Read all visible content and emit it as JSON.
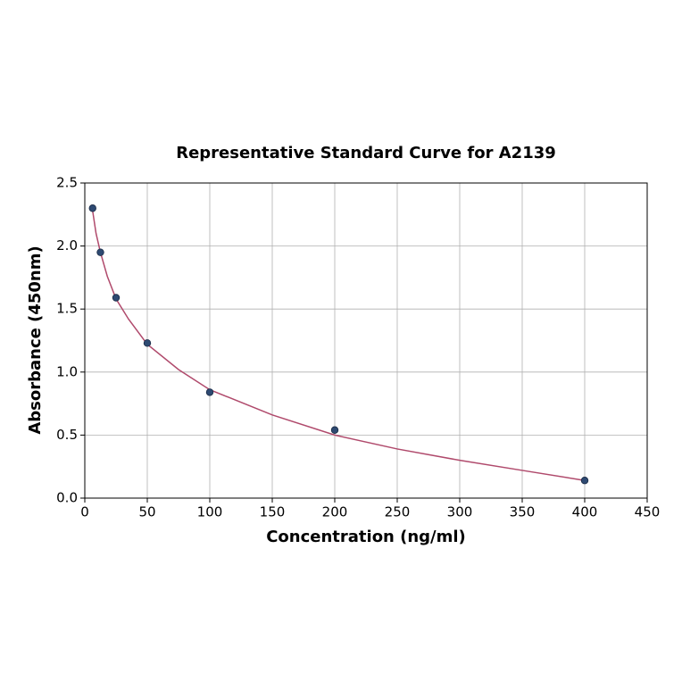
{
  "chart_data": {
    "type": "scatter",
    "title": "Representative Standard Curve for A2139",
    "x_label": "Concentration (ng/ml)",
    "y_label": "Absorbance (450nm)",
    "xlim": [
      0,
      450
    ],
    "xticks": [
      0,
      50,
      100,
      150,
      200,
      250,
      300,
      350,
      400,
      450
    ],
    "ylim": [
      0,
      2.5
    ],
    "yticks": [
      {
        "value": 0,
        "label": "0.0"
      },
      {
        "value": 0.5,
        "label": "0.5"
      },
      {
        "value": 1,
        "label": "1.0"
      },
      {
        "value": 1.5,
        "label": "1.5"
      },
      {
        "value": 2,
        "label": "2.0"
      },
      {
        "value": 2.5,
        "label": "2.5"
      }
    ],
    "grid": true,
    "series": [
      {
        "style": "line",
        "color": "#b04a6c",
        "x": [
          6.25,
          9,
          12.5,
          18,
          25,
          35,
          50,
          75,
          100,
          150,
          200,
          250,
          300,
          350,
          400
        ],
        "values": [
          2.28,
          2.1,
          1.95,
          1.76,
          1.58,
          1.42,
          1.22,
          1.02,
          0.86,
          0.66,
          0.5,
          0.39,
          0.3,
          0.22,
          0.14
        ]
      },
      {
        "style": "markers",
        "color": "#2e4a72",
        "x": [
          6.25,
          12.5,
          25,
          50,
          100,
          200,
          400
        ],
        "values": [
          2.3,
          1.95,
          1.59,
          1.23,
          0.84,
          0.54,
          0.14
        ]
      }
    ]
  }
}
